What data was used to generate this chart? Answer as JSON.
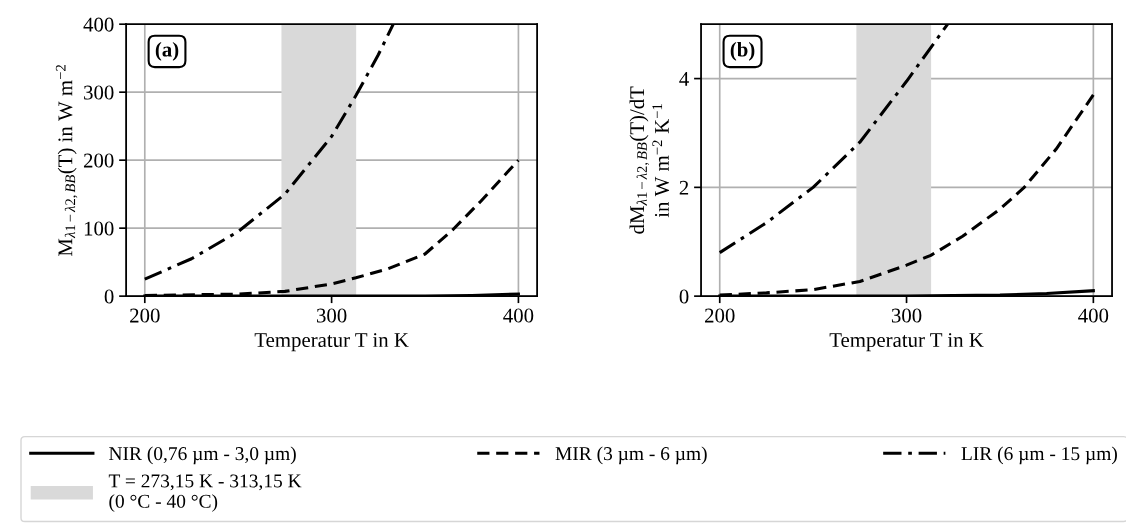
{
  "chart_data": [
    {
      "type": "line",
      "xlabel": "Temperatur T in K",
      "ylabel": "M$_{λ1−λ2,BB}$(T) in W m$^{−2}$",
      "annotations": [
        "(a)"
      ],
      "xlim": [
        190,
        410
      ],
      "xticks": [
        200,
        300,
        400
      ],
      "ylim": [
        0,
        400
      ],
      "yticks": [
        0,
        100,
        200,
        300,
        400
      ],
      "grid": true,
      "legend": "bottom",
      "series": [
        {
          "name": "NIR (0,76 µm - 3,0 µm)",
          "color": "#000000",
          "line_style": "solid",
          "x": [
            200,
            300,
            350,
            375,
            400
          ],
          "values": [
            0,
            0,
            0,
            1,
            3
          ]
        },
        {
          "name": "MIR (3 µm - 6 µm)",
          "color": "#000000",
          "line_style": "dashed",
          "x": [
            200,
            250,
            275,
            300,
            313,
            330,
            350,
            365,
            380,
            400
          ],
          "values": [
            1,
            3,
            7,
            18,
            27,
            40,
            62,
            98,
            140,
            200
          ]
        },
        {
          "name": "LIR (6 µm - 15 µm)",
          "color": "#000000",
          "line_style": "dashdot",
          "x": [
            200,
            225,
            250,
            275,
            300,
            313,
            325,
            333
          ],
          "values": [
            25,
            55,
            95,
            150,
            235,
            295,
            355,
            400
          ]
        }
      ],
      "bands": [
        {
          "axis": "x",
          "from": 273.15,
          "to": 313.15,
          "label": "T = 273,15 K - 313,15 K\n(0 °C - 40 °C)",
          "color": "#d9d9d9"
        }
      ]
    },
    {
      "type": "line",
      "xlabel": "Temperatur T in K",
      "ylabel": "dM$_{λ1−λ2,BB}$(T)/dT\nin W m$^{−2}$ K$^{−1}$",
      "annotations": [
        "(b)"
      ],
      "xlim": [
        190,
        410
      ],
      "xticks": [
        200,
        300,
        400
      ],
      "ylim": [
        0,
        5
      ],
      "yticks": [
        0,
        2,
        4
      ],
      "grid": true,
      "series": [
        {
          "color": "#000000",
          "line_style": "solid",
          "x": [
            200,
            300,
            350,
            375,
            400
          ],
          "values": [
            0,
            0,
            0.02,
            0.05,
            0.1
          ]
        },
        {
          "color": "#000000",
          "line_style": "dashed",
          "x": [
            200,
            225,
            250,
            275,
            300,
            313,
            330,
            350,
            363,
            380,
            400
          ],
          "values": [
            0.02,
            0.06,
            0.12,
            0.27,
            0.57,
            0.75,
            1.1,
            1.6,
            2.0,
            2.7,
            3.7
          ]
        },
        {
          "color": "#000000",
          "line_style": "dashdot",
          "x": [
            200,
            225,
            250,
            275,
            300,
            313,
            322
          ],
          "values": [
            0.8,
            1.35,
            2.0,
            2.83,
            3.95,
            4.57,
            5
          ]
        }
      ],
      "bands": [
        {
          "axis": "x",
          "from": 273.15,
          "to": 313.15,
          "color": "#d9d9d9"
        }
      ]
    }
  ]
}
